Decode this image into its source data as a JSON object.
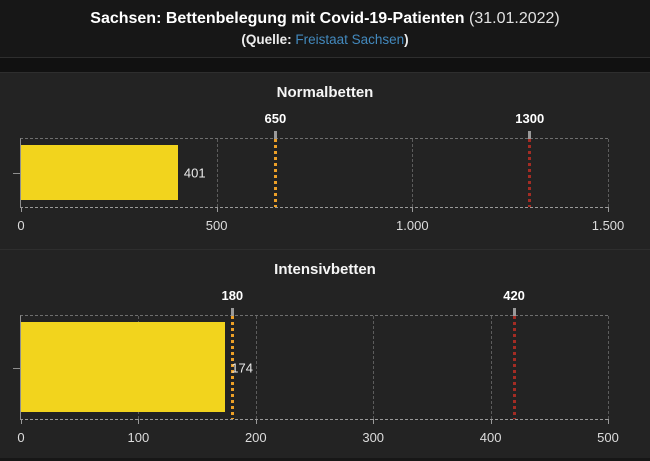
{
  "header": {
    "title": "Sachsen: Bettenbelegung mit Covid-19-Patienten",
    "date": "(31.01.2022)",
    "source_prefix": "(Quelle:",
    "source_link_label": "Freistaat Sachsen",
    "source_suffix": ")"
  },
  "colors": {
    "bar_fill": "#f2d41d",
    "marker_orange": "#ec9f27",
    "marker_red": "#a32c24",
    "link_blue": "#4389bd",
    "panel_bg": "#232323",
    "header_bg": "#171717"
  },
  "chart_data": [
    {
      "type": "bar",
      "orientation": "horizontal",
      "title": "Normalbetten",
      "value": 401,
      "value_label": "401",
      "bar_color": "#f2d41d",
      "xlim": [
        0,
        1500
      ],
      "grid": true,
      "ticks": [
        {
          "value": 0,
          "label": "0"
        },
        {
          "value": 500,
          "label": "500"
        },
        {
          "value": 1000,
          "label": "1.000"
        },
        {
          "value": 1500,
          "label": "1.500"
        }
      ],
      "markers": [
        {
          "value": 650,
          "label": "650",
          "color": "#ec9f27"
        },
        {
          "value": 1300,
          "label": "1300",
          "color": "#a32c24"
        }
      ]
    },
    {
      "type": "bar",
      "orientation": "horizontal",
      "title": "Intensivbetten",
      "value": 174,
      "value_label": "174",
      "bar_color": "#f2d41d",
      "xlim": [
        0,
        500
      ],
      "grid": true,
      "ticks": [
        {
          "value": 0,
          "label": "0"
        },
        {
          "value": 100,
          "label": "100"
        },
        {
          "value": 200,
          "label": "200"
        },
        {
          "value": 300,
          "label": "300"
        },
        {
          "value": 400,
          "label": "400"
        },
        {
          "value": 500,
          "label": "500"
        }
      ],
      "markers": [
        {
          "value": 180,
          "label": "180",
          "color": "#ec9f27"
        },
        {
          "value": 420,
          "label": "420",
          "color": "#a32c24"
        }
      ]
    }
  ]
}
